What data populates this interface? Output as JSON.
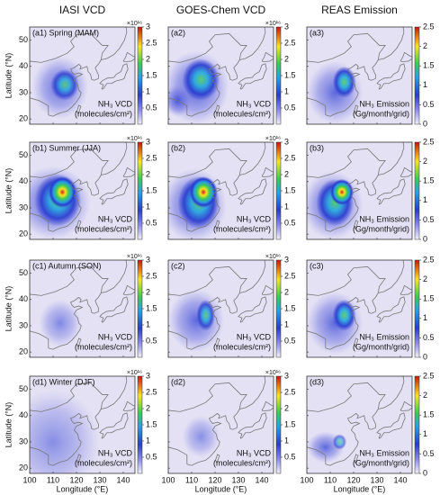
{
  "columns": [
    {
      "title": "IASI VCD",
      "unit": [
        "NH₃ VCD",
        "(molecules/cm²)"
      ],
      "multiplier": "×10¹⁶",
      "cbar_lim": [
        0,
        3
      ],
      "cbar_ticks": [
        0.5,
        1,
        1.5,
        2,
        2.5,
        3
      ]
    },
    {
      "title": "GOES-Chem VCD",
      "unit": [
        "NH₃ VCD",
        "(molecules/cm²)"
      ],
      "multiplier": "×10¹⁶",
      "cbar_lim": [
        0,
        3
      ],
      "cbar_ticks": [
        0.5,
        1,
        1.5,
        2,
        2.5,
        3
      ]
    },
    {
      "title": "REAS Emission",
      "unit": [
        "NH₃ Emission",
        "(Gg/month/grid)"
      ],
      "cbar_lim": [
        0,
        2.5
      ],
      "cbar_ticks": [
        0,
        0.5,
        1,
        1.5,
        2,
        2.5
      ]
    }
  ],
  "rows": [
    {
      "panels": [
        "(a1) Spring (MAM)",
        "(a2)",
        "(a3)"
      ]
    },
    {
      "panels": [
        "(b1) Summer (JJA)",
        "(b2)",
        "(b3)"
      ]
    },
    {
      "panels": [
        "(c1) Autumn (SON)",
        "(c2)",
        "(c3)"
      ]
    },
    {
      "panels": [
        "(d1) Winter (DJF)",
        "(d2)",
        "(d3)"
      ]
    }
  ],
  "latitude": {
    "label": "Latitude (°N)",
    "lim": [
      18,
      55
    ],
    "ticks": [
      20,
      30,
      40,
      50
    ]
  },
  "longitude": {
    "label": "Longitude (°E)",
    "lim": [
      100,
      145
    ],
    "ticks": [
      100,
      110,
      120,
      130,
      140
    ]
  }
}
